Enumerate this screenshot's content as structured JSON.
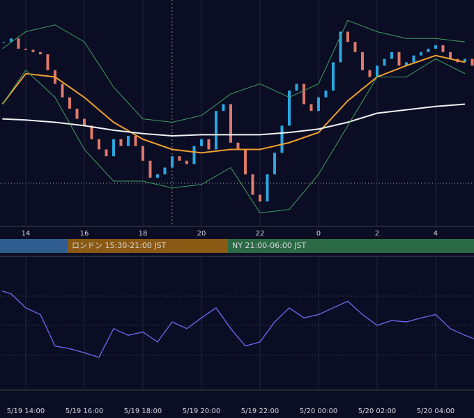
{
  "chart_data": [
    {
      "type": "candlestick",
      "x": [
        13.25,
        13.5,
        13.75,
        14,
        14.25,
        14.5,
        14.75,
        15,
        15.25,
        15.5,
        15.75,
        16,
        16.25,
        16.5,
        16.75,
        17,
        17.25,
        17.5,
        17.75,
        18,
        18.25,
        18.5,
        18.75,
        19,
        19.25,
        19.5,
        19.75,
        20,
        20.25,
        20.5,
        20.75,
        21,
        21.25,
        21.5,
        21.75,
        22,
        22.25,
        22.5,
        22.75,
        23,
        23.25,
        23.5,
        23.75,
        24,
        24.25,
        24.5,
        24.75,
        25,
        25.25,
        25.5,
        25.75,
        26,
        26.25,
        26.5,
        26.75,
        27,
        27.25,
        27.5,
        27.75,
        28,
        28.25,
        28.5,
        28.75,
        29,
        29.25
      ],
      "values": [
        81.5,
        83,
        78.5,
        78,
        77,
        76,
        69,
        63,
        57,
        52,
        47.5,
        44.5,
        38.5,
        34,
        31,
        38.5,
        35.5,
        40,
        35.5,
        29,
        21.5,
        23,
        26,
        31,
        29,
        27.5,
        35.5,
        38.5,
        34,
        51,
        54,
        37,
        34,
        23,
        14,
        11,
        23,
        32.5,
        44.5,
        60,
        63,
        54,
        51,
        57,
        60,
        72.5,
        86,
        81.5,
        77,
        69,
        66,
        71,
        74,
        77,
        71,
        72.5,
        75.5,
        77,
        78.5,
        80,
        77,
        74,
        72.5,
        74,
        71
      ],
      "up_color": "#2aa8e0",
      "down_color": "#e07a6a",
      "lines": [
        {
          "x": [
            13.2,
            14,
            15,
            16,
            17,
            18,
            19,
            20,
            21,
            22,
            23,
            24,
            25,
            26,
            27,
            28,
            29
          ],
          "values": [
            54,
            67.5,
            66,
            57,
            46,
            38.5,
            34,
            32.5,
            34,
            34,
            37,
            41.5,
            55.5,
            66,
            71,
            75.5,
            72.5
          ],
          "color": "#f0a030"
        },
        {
          "x": [
            13.2,
            14,
            15,
            16,
            17,
            18,
            19,
            20,
            21,
            22,
            23,
            24,
            25,
            26,
            27,
            28,
            29
          ],
          "values": [
            47.5,
            47,
            46,
            44.5,
            42.5,
            41,
            40,
            40.5,
            40.5,
            40.5,
            41.5,
            43,
            46,
            50,
            51.5,
            53,
            54
          ],
          "color": "#f2f2f2"
        },
        {
          "x": [
            13.2,
            14,
            15,
            16,
            17,
            18,
            19,
            20,
            21,
            22,
            23,
            24,
            25,
            26,
            27,
            28,
            29
          ],
          "values": [
            78.5,
            86,
            89,
            81.5,
            61.5,
            47.5,
            46,
            49,
            58.5,
            63,
            57,
            63,
            91,
            86,
            83,
            83,
            81.5
          ],
          "color": "#3fa060"
        },
        {
          "x": [
            13.2,
            14,
            15,
            16,
            17,
            18,
            19,
            20,
            21,
            22,
            23,
            24,
            25,
            26,
            27,
            28,
            29
          ],
          "values": [
            54,
            69,
            57,
            34,
            20,
            20,
            17,
            18.5,
            26,
            6,
            7.5,
            23,
            44.5,
            66,
            66,
            74,
            67.5
          ],
          "color": "#3fa060"
        }
      ],
      "xlim": [
        13.12,
        29.31
      ],
      "ylim": [
        0,
        100
      ],
      "xticks": [
        14,
        16,
        18,
        20,
        22,
        {
          "value": 24,
          "label": "0"
        },
        {
          "value": 26,
          "label": "2"
        },
        {
          "value": 28,
          "label": "4"
        }
      ],
      "sessions": [
        "ロンドン 15:30-21:00 JST",
        "NY 21:00-06:00 JST"
      ]
    },
    {
      "type": "line",
      "x": [
        13.2,
        13.5,
        14,
        14.5,
        15,
        15.5,
        16,
        16.5,
        17,
        17.5,
        18,
        18.5,
        19,
        19.5,
        20,
        20.5,
        21,
        21.5,
        22,
        22.5,
        23,
        23.5,
        24,
        24.5,
        25,
        25.5,
        26,
        26.5,
        27,
        27.5,
        28,
        28.5,
        29,
        29.3
      ],
      "values": [
        74,
        72,
        61.5,
        56.5,
        33,
        31,
        28,
        24.5,
        46,
        41,
        43.5,
        36,
        51,
        46,
        54,
        61.5,
        46,
        33,
        36,
        51,
        61.5,
        54,
        56.5,
        61.5,
        66.5,
        56.5,
        48.5,
        52,
        51,
        54,
        56.5,
        46,
        41,
        38.5
      ],
      "color": "#6b6cf0",
      "xlim": [
        13.12,
        29.31
      ],
      "ylim": [
        0,
        100
      ],
      "xticks": [
        {
          "value": 14,
          "label": "5/19 14:00"
        },
        {
          "value": 16,
          "label": "5/19 16:00"
        },
        {
          "value": 18,
          "label": "5/19 18:00"
        },
        {
          "value": 20,
          "label": "5/19 20:00"
        },
        {
          "value": 22,
          "label": "5/19 22:00"
        },
        {
          "value": 24,
          "label": "5/20 00:00"
        },
        {
          "value": 26,
          "label": "5/20 02:00"
        },
        {
          "value": 28,
          "label": "5/20 04:00"
        }
      ]
    }
  ]
}
